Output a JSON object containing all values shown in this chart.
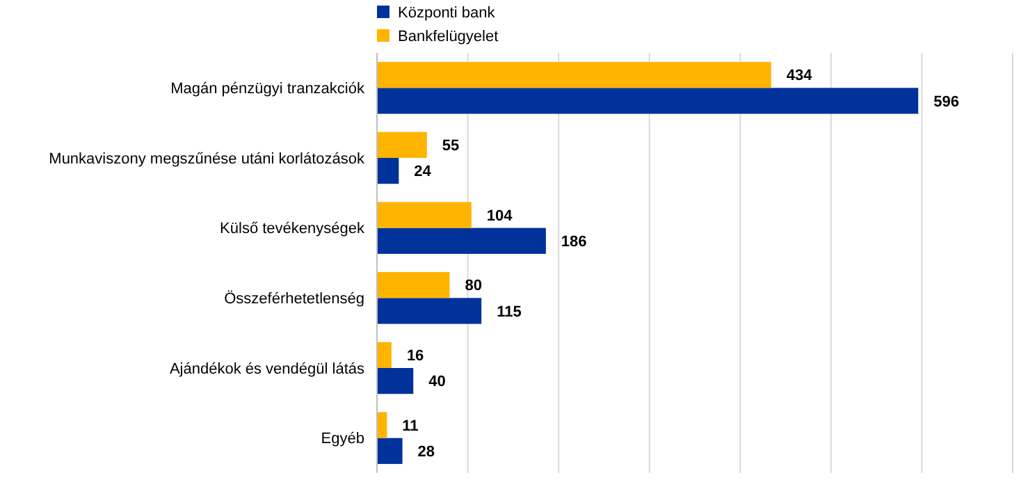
{
  "chart_data": {
    "type": "bar",
    "orientation": "horizontal",
    "categories": [
      "Magán pénzügyi tranzakciók",
      "Munkaviszony megszűnése utáni korlátozások",
      "Külső tevékenységek",
      "Összeférhetetlenség",
      "Ajándékok és vendégül látás",
      "Egyéb"
    ],
    "series": [
      {
        "name": "Központi bank",
        "color": "#003299",
        "values": [
          596,
          24,
          186,
          115,
          40,
          28
        ]
      },
      {
        "name": "Bankfelügyelet",
        "color": "#ffb400",
        "values": [
          434,
          55,
          104,
          80,
          16,
          11
        ]
      }
    ],
    "xlim": [
      0,
      700
    ],
    "xticks": [
      {
        "value": 0,
        "label": null
      },
      {
        "value": 100,
        "label": null
      },
      {
        "value": 200,
        "label": null
      },
      {
        "value": 300,
        "label": null
      },
      {
        "value": 400,
        "label": null
      },
      {
        "value": 500,
        "label": null
      },
      {
        "value": 600,
        "label": null
      },
      {
        "value": 700,
        "label": null
      }
    ],
    "tick_labels": "y",
    "grid": "x",
    "legend": "top",
    "data_labels": true
  }
}
